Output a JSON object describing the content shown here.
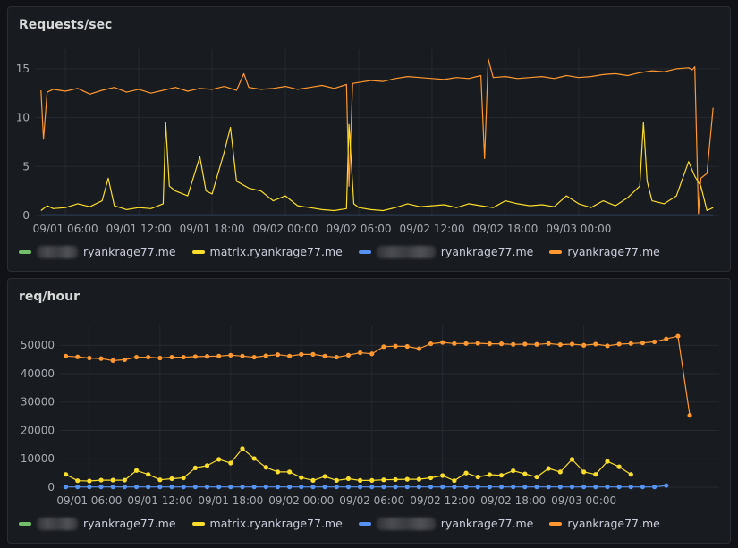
{
  "panels": [
    {
      "title": "Requests/sec"
    },
    {
      "title": "req/hour"
    }
  ],
  "legend": [
    {
      "label": "ryankrage77.me",
      "color": "#73bf69",
      "redacted_prefix": true,
      "redacted_width": 60
    },
    {
      "label": "matrix.ryankrage77.me",
      "color": "#fade2a",
      "redacted_prefix": false
    },
    {
      "label": "ryankrage77.me",
      "color": "#5794f2",
      "redacted_prefix": true,
      "redacted_width": 68
    },
    {
      "label": "ryankrage77.me",
      "color": "#ff9830",
      "redacted_prefix": false
    }
  ],
  "chart_data": [
    {
      "type": "line",
      "title": "Requests/sec",
      "x_ticks": [
        "09/01 06:00",
        "09/01 12:00",
        "09/01 18:00",
        "09/02 00:00",
        "09/02 06:00",
        "09/02 12:00",
        "09/02 18:00",
        "09/03 00:00"
      ],
      "y_ticks": [
        0,
        5,
        10,
        15
      ],
      "ylim": [
        0,
        17
      ],
      "x_range_hours": [
        -2.5,
        53.5
      ],
      "series": [
        {
          "name": "ryankrage77.me",
          "color": "#ff9830",
          "x": [
            -2.0,
            -1.8,
            -1.5,
            -1.0,
            0,
            1,
            2,
            3,
            4,
            5,
            6,
            7,
            8,
            9,
            10,
            11,
            12,
            13,
            14,
            14.6,
            15,
            16,
            17,
            18,
            19,
            20,
            21,
            22,
            23,
            23.2,
            23.5,
            24,
            25,
            26,
            27,
            28,
            29,
            30,
            31,
            32,
            33,
            34,
            34.3,
            34.6,
            35,
            36,
            37,
            38,
            39,
            40,
            41,
            42,
            43,
            44,
            45,
            46,
            47,
            48,
            49,
            50,
            51,
            51.3,
            51.5,
            51.8,
            52,
            52.5,
            53.0
          ],
          "y": [
            12.8,
            7.8,
            12.6,
            12.9,
            12.7,
            13.0,
            12.4,
            12.8,
            13.1,
            12.6,
            12.9,
            12.5,
            12.8,
            13.1,
            12.7,
            13.0,
            12.9,
            13.2,
            12.8,
            14.5,
            13.1,
            12.9,
            13.0,
            13.2,
            12.9,
            13.1,
            13.3,
            13.0,
            13.4,
            3.0,
            13.5,
            13.6,
            13.8,
            13.7,
            14.0,
            14.2,
            14.1,
            14.0,
            13.9,
            14.1,
            14.0,
            14.3,
            5.8,
            16.0,
            14.1,
            14.2,
            14.0,
            14.1,
            14.2,
            14.0,
            14.3,
            14.1,
            14.2,
            14.4,
            14.5,
            14.3,
            14.6,
            14.8,
            14.7,
            15.0,
            15.1,
            14.9,
            15.2,
            0.2,
            3.8,
            4.3,
            11.0
          ]
        },
        {
          "name": "matrix.ryankrage77.me",
          "color": "#fade2a",
          "x": [
            -2.0,
            -1.5,
            -1.0,
            0,
            1,
            2,
            3,
            3.5,
            4,
            5,
            6,
            7,
            8,
            8.2,
            8.5,
            9,
            10,
            11,
            11.5,
            12,
            13,
            13.5,
            14,
            15,
            16,
            17,
            18,
            19,
            20,
            21,
            22,
            23,
            23.2,
            23.6,
            24,
            25,
            26,
            27,
            28,
            29,
            30,
            31,
            32,
            33,
            34,
            35,
            36,
            37,
            38,
            39,
            40,
            41,
            42,
            43,
            44,
            45,
            46,
            47,
            47.3,
            47.6,
            48,
            49,
            50,
            51,
            51.5,
            52,
            52.5,
            53.0
          ],
          "y": [
            0.5,
            1.0,
            0.7,
            0.8,
            1.2,
            0.9,
            1.5,
            3.8,
            1.0,
            0.6,
            0.8,
            0.7,
            1.2,
            9.5,
            3.0,
            2.5,
            2.0,
            6.0,
            2.5,
            2.2,
            6.5,
            9.0,
            3.5,
            2.8,
            2.5,
            1.5,
            2.0,
            1.0,
            0.8,
            0.6,
            0.5,
            0.7,
            9.3,
            1.2,
            0.8,
            0.6,
            0.5,
            0.8,
            1.2,
            0.9,
            1.0,
            1.1,
            0.8,
            1.2,
            1.0,
            0.8,
            1.5,
            1.2,
            1.0,
            1.1,
            0.9,
            2.0,
            1.2,
            0.8,
            1.5,
            1.0,
            1.8,
            3.0,
            9.5,
            3.5,
            1.5,
            1.2,
            2.0,
            5.5,
            4.0,
            3.0,
            0.5,
            0.8
          ]
        },
        {
          "name": "ryankrage77.me",
          "color": "#5794f2",
          "x": [
            -2.0,
            53.0
          ],
          "y": [
            0.05,
            0.05
          ]
        }
      ]
    },
    {
      "type": "line",
      "title": "req/hour",
      "x_ticks": [
        "09/01 06:00",
        "09/01 12:00",
        "09/01 18:00",
        "09/02 00:00",
        "09/02 06:00",
        "09/02 12:00",
        "09/02 18:00",
        "09/03 00:00"
      ],
      "y_ticks": [
        0,
        10000,
        20000,
        30000,
        40000,
        50000
      ],
      "ylim": [
        0,
        57000
      ],
      "x_range_hours": [
        -2.5,
        53.5
      ],
      "series": [
        {
          "name": "ryankrage77.me",
          "color": "#ff9830",
          "x": [
            -2,
            -1,
            0,
            1,
            2,
            3,
            4,
            5,
            6,
            7,
            8,
            9,
            10,
            11,
            12,
            13,
            14,
            15,
            16,
            17,
            18,
            19,
            20,
            21,
            22,
            23,
            24,
            25,
            26,
            27,
            28,
            29,
            30,
            31,
            32,
            33,
            34,
            35,
            36,
            37,
            38,
            39,
            40,
            41,
            42,
            43,
            44,
            45,
            46,
            47,
            48,
            49,
            50,
            51,
            52
          ],
          "y": [
            46200,
            45900,
            45500,
            45300,
            44600,
            44900,
            45800,
            45800,
            45500,
            45800,
            45800,
            46000,
            46100,
            46200,
            46500,
            46200,
            45800,
            46300,
            46700,
            46200,
            46800,
            46800,
            46200,
            45800,
            46500,
            47400,
            47000,
            49500,
            49700,
            49600,
            48800,
            50500,
            51000,
            50600,
            50600,
            50700,
            50500,
            50500,
            50300,
            50400,
            50300,
            50600,
            50200,
            50400,
            50000,
            50400,
            49800,
            50400,
            50600,
            50800,
            51200,
            52200,
            53200,
            25300,
            null
          ]
        },
        {
          "name": "matrix.ryankrage77.me",
          "color": "#fade2a",
          "x": [
            -2,
            -1,
            0,
            1,
            2,
            3,
            4,
            5,
            6,
            7,
            8,
            9,
            10,
            11,
            12,
            13,
            14,
            15,
            16,
            17,
            18,
            19,
            20,
            21,
            22,
            23,
            24,
            25,
            26,
            27,
            28,
            29,
            30,
            31,
            32,
            33,
            34,
            35,
            36,
            37,
            38,
            39,
            40,
            41,
            42,
            43,
            44,
            45,
            46,
            47,
            48,
            49,
            50,
            51,
            52
          ],
          "y": [
            4500,
            2300,
            2200,
            2500,
            2500,
            2500,
            5900,
            4500,
            2600,
            3000,
            3300,
            6800,
            7600,
            9800,
            8500,
            13600,
            10100,
            7000,
            5400,
            5400,
            3400,
            2400,
            3800,
            2400,
            3000,
            2400,
            2400,
            2600,
            2700,
            2800,
            2800,
            3300,
            4100,
            2300,
            5000,
            3600,
            4400,
            4200,
            5800,
            4700,
            3600,
            6600,
            5400,
            9800,
            5400,
            4500,
            9100,
            7200,
            4500,
            null,
            null,
            null,
            null,
            null,
            null
          ]
        },
        {
          "name": "ryankrage77.me",
          "color": "#5794f2",
          "x": [
            -2,
            -1,
            0,
            1,
            2,
            3,
            4,
            5,
            6,
            7,
            8,
            9,
            10,
            11,
            12,
            13,
            14,
            15,
            16,
            17,
            18,
            19,
            20,
            21,
            22,
            23,
            24,
            25,
            26,
            27,
            28,
            29,
            30,
            31,
            32,
            33,
            34,
            35,
            36,
            37,
            38,
            39,
            40,
            41,
            42,
            43,
            44,
            45,
            46,
            47,
            48,
            49
          ],
          "y": [
            100,
            100,
            100,
            100,
            100,
            100,
            100,
            100,
            100,
            100,
            100,
            100,
            100,
            100,
            100,
            100,
            100,
            100,
            100,
            100,
            100,
            100,
            100,
            100,
            100,
            100,
            100,
            100,
            100,
            100,
            100,
            100,
            100,
            100,
            100,
            100,
            100,
            100,
            100,
            100,
            100,
            100,
            100,
            100,
            100,
            100,
            100,
            100,
            100,
            100,
            100,
            600
          ]
        }
      ]
    }
  ]
}
